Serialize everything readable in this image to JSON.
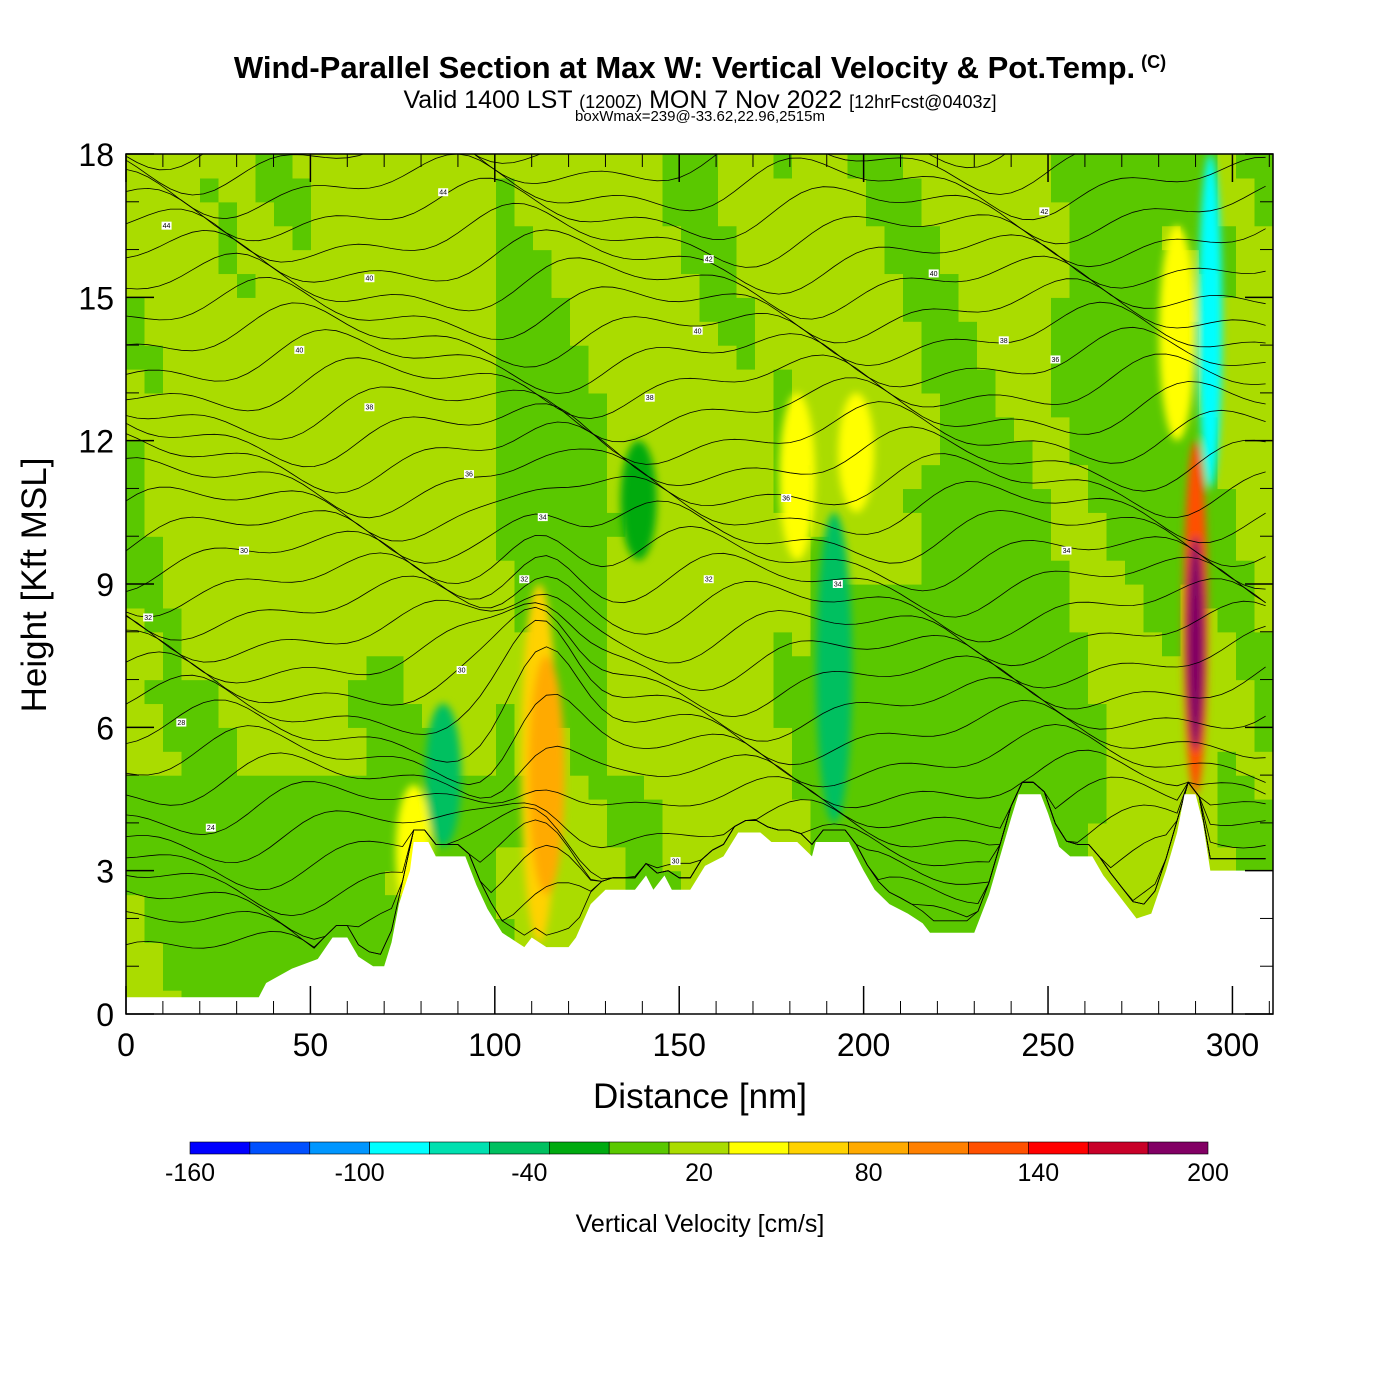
{
  "header": {
    "title": "Wind-Parallel Section at Max W: Vertical Velocity & Pot.Temp.",
    "copyright": "(C)",
    "valid_prefix": "Valid 1400 LST",
    "valid_utc": "(1200Z)",
    "valid_date": "MON 7 Nov 2022",
    "forecast": "[12hrFcst@0403z]",
    "boxwmax": "boxWmax=239@-33.62,22.96,2515m"
  },
  "chart_data": {
    "type": "heatmap",
    "xlabel": "Distance [nm]",
    "ylabel": "Height [Kft MSL]",
    "xlim": [
      0,
      311
    ],
    "ylim": [
      0,
      18
    ],
    "xticks": [
      0,
      50,
      100,
      150,
      200,
      250,
      300
    ],
    "yticks": [
      0,
      3,
      6,
      9,
      12,
      15,
      18
    ],
    "colorbar": {
      "label": "Vertical Velocity [cm/s]",
      "tick_labels": [
        "-160",
        "-100",
        "-40",
        "20",
        "80",
        "140",
        "200"
      ],
      "tick_values": [
        -160,
        -100,
        -40,
        20,
        80,
        140,
        200
      ],
      "bounds": [
        -160,
        -140,
        -120,
        -100,
        -80,
        -60,
        -40,
        -20,
        0,
        20,
        40,
        60,
        80,
        100,
        120,
        140,
        160,
        180,
        200
      ],
      "colors": [
        "#0000ff",
        "#0050ff",
        "#0096ff",
        "#00ffff",
        "#00e0b0",
        "#00c060",
        "#00aa10",
        "#5ac800",
        "#aadc00",
        "#ffff00",
        "#ffd200",
        "#ffaa00",
        "#ff8000",
        "#ff5000",
        "#ff0000",
        "#c80028",
        "#820064"
      ]
    },
    "terrain_profile": [
      [
        0,
        0.35
      ],
      [
        36,
        0.35
      ],
      [
        38,
        0.65
      ],
      [
        45,
        0.95
      ],
      [
        52,
        1.15
      ],
      [
        56,
        1.6
      ],
      [
        60,
        1.6
      ],
      [
        63,
        1.2
      ],
      [
        67,
        1.0
      ],
      [
        70,
        1.0
      ],
      [
        72,
        1.5
      ],
      [
        74,
        2.3
      ],
      [
        77,
        3.0
      ],
      [
        78,
        3.6
      ],
      [
        82,
        3.6
      ],
      [
        84,
        3.3
      ],
      [
        92,
        3.3
      ],
      [
        95,
        2.7
      ],
      [
        98,
        2.2
      ],
      [
        102,
        1.7
      ],
      [
        106,
        1.5
      ],
      [
        108,
        1.4
      ],
      [
        110,
        1.6
      ],
      [
        114,
        1.4
      ],
      [
        120,
        1.4
      ],
      [
        122,
        1.6
      ],
      [
        126,
        2.3
      ],
      [
        130,
        2.6
      ],
      [
        138,
        2.6
      ],
      [
        141,
        2.9
      ],
      [
        143,
        2.6
      ],
      [
        146,
        2.9
      ],
      [
        148,
        2.6
      ],
      [
        153,
        2.6
      ],
      [
        157,
        3.1
      ],
      [
        162,
        3.3
      ],
      [
        166,
        3.8
      ],
      [
        172,
        3.8
      ],
      [
        175,
        3.6
      ],
      [
        182,
        3.6
      ],
      [
        186,
        3.3
      ],
      [
        187,
        3.6
      ],
      [
        196,
        3.6
      ],
      [
        200,
        3.0
      ],
      [
        203,
        2.6
      ],
      [
        207,
        2.3
      ],
      [
        212,
        2.1
      ],
      [
        216,
        1.9
      ],
      [
        218,
        1.7
      ],
      [
        230,
        1.7
      ],
      [
        234,
        2.5
      ],
      [
        237,
        3.3
      ],
      [
        240,
        4.1
      ],
      [
        242,
        4.6
      ],
      [
        248,
        4.6
      ],
      [
        250,
        4.2
      ],
      [
        253,
        3.5
      ],
      [
        256,
        3.3
      ],
      [
        262,
        3.3
      ],
      [
        265,
        2.9
      ],
      [
        268,
        2.6
      ],
      [
        271,
        2.3
      ],
      [
        274,
        2.0
      ],
      [
        278,
        2.1
      ],
      [
        282,
        3.0
      ],
      [
        285,
        3.8
      ],
      [
        287,
        4.6
      ],
      [
        290,
        4.6
      ],
      [
        292,
        4.0
      ],
      [
        294,
        3.0
      ],
      [
        311,
        3.0
      ]
    ],
    "velocity_features": [
      {
        "x": 112,
        "y_bottom": 1.5,
        "y_top": 9.0,
        "w": 40
      },
      {
        "x": 114,
        "y_bottom": 2.5,
        "y_top": 7.5,
        "w": 60
      },
      {
        "x": 78,
        "y_bottom": 2.0,
        "y_top": 4.8,
        "w": 30
      },
      {
        "x": 182,
        "y_bottom": 9.5,
        "y_top": 13.0,
        "w": 30
      },
      {
        "x": 198,
        "y_bottom": 10.5,
        "y_top": 13.0,
        "w": 30
      },
      {
        "x": 285,
        "y_bottom": 12.0,
        "y_top": 16.5,
        "w": 30
      },
      {
        "x": 192,
        "y_bottom": 4.0,
        "y_top": 10.5,
        "w": -50
      },
      {
        "x": 86,
        "y_bottom": 3.5,
        "y_top": 6.5,
        "w": -50
      },
      {
        "x": 139,
        "y_bottom": 9.5,
        "y_top": 12.0,
        "w": -30
      },
      {
        "x": 290,
        "y_bottom": 4.6,
        "y_top": 12.0,
        "w": 100
      },
      {
        "x": 290,
        "y_bottom": 5.5,
        "y_top": 10.0,
        "w": 170
      },
      {
        "x": 290,
        "y_bottom": 6.5,
        "y_top": 9.0,
        "w": 220
      },
      {
        "x": 294,
        "y_bottom": 11.0,
        "y_top": 18.0,
        "w": -100
      }
    ],
    "contour_labels": [
      {
        "x": 11,
        "y": 16.5,
        "text": "44"
      },
      {
        "x": 86,
        "y": 17.2,
        "text": "44"
      },
      {
        "x": 66,
        "y": 15.4,
        "text": "40"
      },
      {
        "x": 158,
        "y": 15.8,
        "text": "42"
      },
      {
        "x": 249,
        "y": 16.8,
        "text": "42"
      },
      {
        "x": 219,
        "y": 15.5,
        "text": "40"
      },
      {
        "x": 47,
        "y": 13.9,
        "text": "40"
      },
      {
        "x": 155,
        "y": 14.3,
        "text": "40"
      },
      {
        "x": 238,
        "y": 14.1,
        "text": "38"
      },
      {
        "x": 66,
        "y": 12.7,
        "text": "38"
      },
      {
        "x": 142,
        "y": 12.9,
        "text": "38"
      },
      {
        "x": 252,
        "y": 13.7,
        "text": "36"
      },
      {
        "x": 93,
        "y": 11.3,
        "text": "36"
      },
      {
        "x": 179,
        "y": 10.8,
        "text": "36"
      },
      {
        "x": 113,
        "y": 10.4,
        "text": "34"
      },
      {
        "x": 32,
        "y": 9.7,
        "text": "30"
      },
      {
        "x": 255,
        "y": 9.7,
        "text": "34"
      },
      {
        "x": 6,
        "y": 8.3,
        "text": "32"
      },
      {
        "x": 108,
        "y": 9.1,
        "text": "32"
      },
      {
        "x": 158,
        "y": 9.1,
        "text": "32"
      },
      {
        "x": 193,
        "y": 9.0,
        "text": "34"
      },
      {
        "x": 91,
        "y": 7.2,
        "text": "30"
      },
      {
        "x": 15,
        "y": 6.1,
        "text": "28"
      },
      {
        "x": 23,
        "y": 3.9,
        "text": "24"
      },
      {
        "x": 149,
        "y": 3.2,
        "text": "30"
      }
    ]
  }
}
